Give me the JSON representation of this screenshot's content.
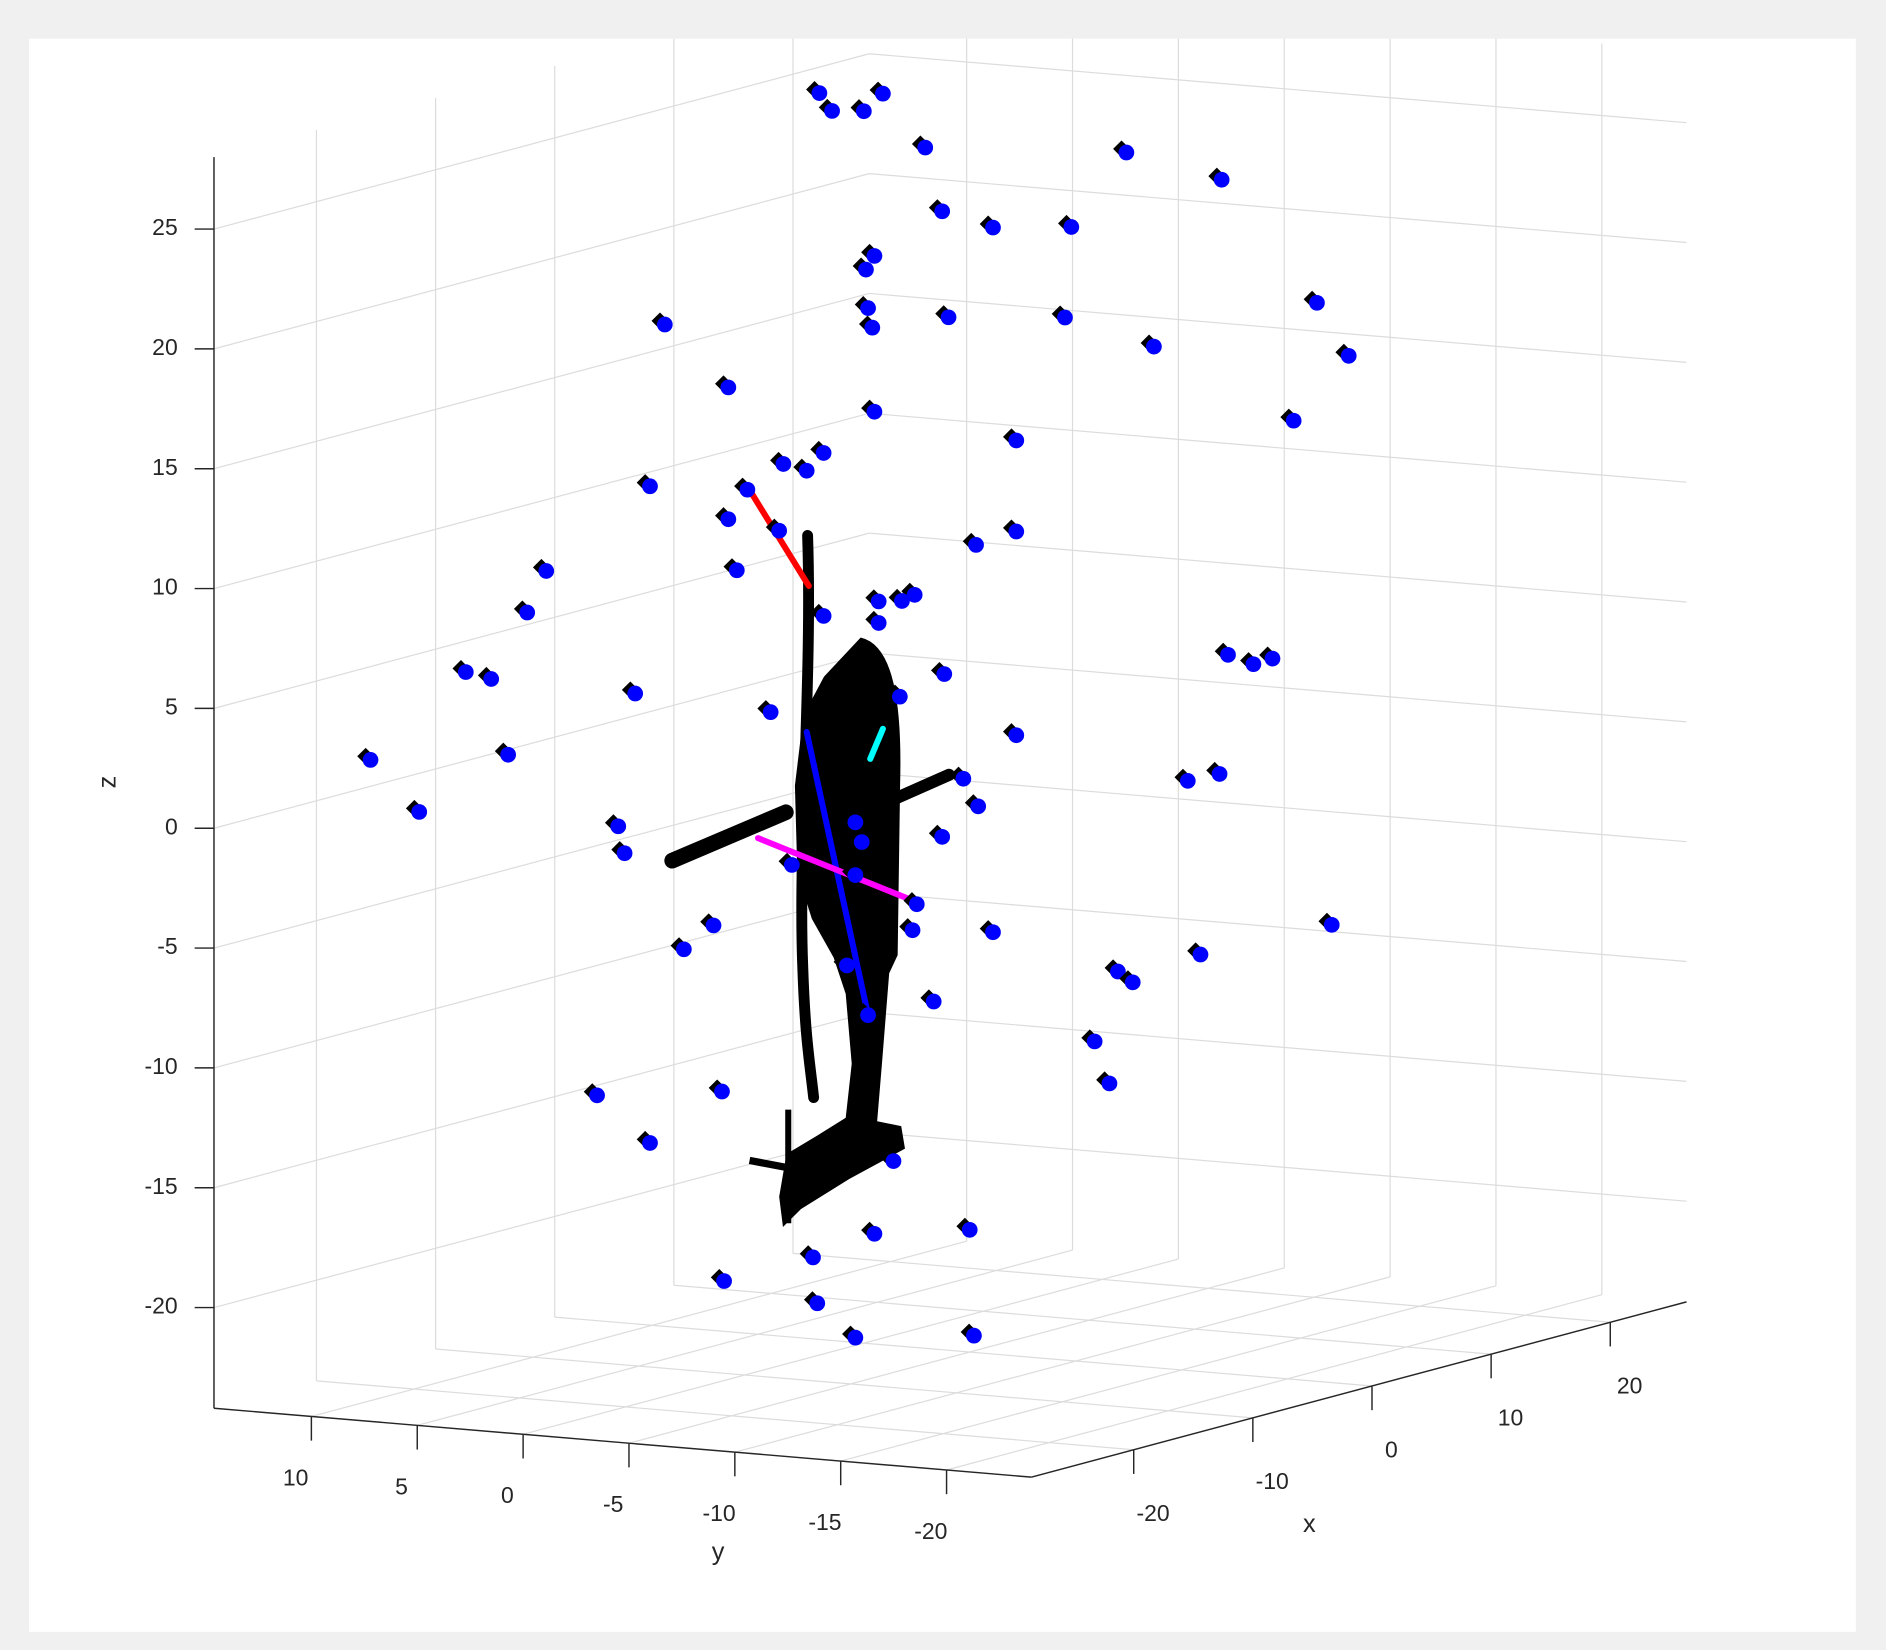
{
  "chart_data": {
    "type": "scatter3d",
    "xlabel": "x",
    "ylabel": "y",
    "zlabel": "z",
    "xlim": [
      -28.6,
      26.4
    ],
    "ylim": [
      -24,
      14.6
    ],
    "zlim": [
      -24.2,
      28
    ],
    "xticks": [
      -20,
      -10,
      0,
      10,
      20
    ],
    "yticks": [
      -20,
      -15,
      -10,
      -5,
      0,
      5,
      10
    ],
    "zticks": [
      -20,
      -15,
      -10,
      -5,
      0,
      5,
      10,
      15,
      20,
      25
    ],
    "grid": true,
    "series": [
      {
        "color": "#0000ff",
        "marker_color": "#000000",
        "x": [
          0,
          0,
          0,
          0,
          0,
          0,
          0,
          0,
          0,
          0,
          0,
          0,
          0,
          0,
          0,
          0,
          0,
          0,
          0,
          0,
          0,
          0,
          0,
          0,
          0,
          0,
          0,
          0,
          0,
          0,
          0,
          0,
          0,
          0,
          0,
          0,
          0,
          0,
          0,
          0,
          0,
          0,
          0,
          0,
          0,
          0,
          0,
          0,
          0,
          0,
          0,
          0,
          0,
          0,
          0,
          0,
          0,
          0,
          0,
          0,
          0,
          0,
          0,
          0,
          0,
          0,
          0,
          0,
          0,
          0,
          0,
          0,
          0,
          0,
          0,
          0,
          0,
          0,
          0,
          0,
          0,
          0,
          0,
          0,
          0,
          0,
          0,
          0,
          0,
          0
        ],
        "y": [
          1.5,
          0.0,
          -0.9,
          2.1,
          -2.9,
          -12.4,
          -16.9,
          -3.7,
          -6.1,
          -9.8,
          -0.5,
          -0.1,
          9.4,
          -0.2,
          -0.4,
          -4.0,
          -9.5,
          -13.7,
          -21.4,
          -22.9,
          6.4,
          -0.5,
          -20.3,
          -7.2,
          10.1,
          5.5,
          3.8,
          1.9,
          2.7,
          6.4,
          4.0,
          -7.2,
          -5.3,
          6.0,
          15.0,
          15.9,
          -0.7,
          -2.4,
          -1.8,
          1.9,
          -0.7,
          18.8,
          17.6,
          10.8,
          -3.8,
          -17.2,
          -19.3,
          -18.4,
          4.4,
          -1.7,
          -7.2,
          23.3,
          16.8,
          21.0,
          -4.7,
          -15.3,
          -16.8,
          -5.4,
          11.6,
          11.3,
          -3.7,
          0.1,
          0.4,
          3.4,
          -2.5,
          -2.3,
          -6.1,
          7.1,
          8.5,
          -22.1,
          -15.9,
          -12.0,
          -12.7,
          -3.3,
          -0.2,
          0.8,
          -10.9,
          12.6,
          6.7,
          -11.6,
          10.1,
          -1.4,
          -0.5,
          -5.0,
          6.6,
          2.4,
          2.2,
          0.4,
          -5.2,
          0.4
        ],
        "z": [
          27.1,
          27.2,
          28.0,
          27.8,
          25.9,
          26.4,
          25.6,
          23.3,
          22.8,
          23.1,
          21.2,
          20.6,
          17.6,
          19.0,
          18.2,
          18.9,
          19.3,
          18.4,
          20.8,
          18.7,
          15.2,
          14.7,
          15.8,
          14.0,
          10.8,
          11.0,
          12.2,
          12.8,
          12.0,
          9.7,
          9.4,
          10.2,
          9.5,
          7.6,
          6.9,
          5.1,
          6.8,
          7.2,
          6.9,
          6.0,
          5.9,
          2.4,
          2.2,
          2.1,
          4.0,
          5.8,
          5.8,
          5.5,
          1.8,
          2.9,
          1.7,
          -1.6,
          -0.9,
          -3.6,
          -0.3,
          0.4,
          0.8,
          -1.4,
          -3.5,
          -4.6,
          -2.8,
          -3.3,
          -2.5,
          -4.5,
          -5.7,
          -6.8,
          -6.6,
          -7.3,
          -8.4,
          -5.1,
          -6.8,
          -7.8,
          -8.2,
          -9.7,
          -10.5,
          -8.5,
          -10.8,
          -14.8,
          -14.2,
          -12.5,
          -16.6,
          -16.5,
          -19.6,
          -19.1,
          -22.1,
          -20.8,
          -22.7,
          -24.0,
          -23.5,
          -4.7
        ]
      }
    ],
    "segments": [
      {
        "color": "#ff0000",
        "x": [
          0,
          0
        ],
        "y": [
          5.4,
          2.6
        ],
        "z": [
          11.0,
          7.2
        ]
      },
      {
        "color": "#0000ff",
        "x": [
          0,
          0
        ],
        "y": [
          2.7,
          -0.2
        ],
        "z": [
          1.1,
          -10.5
        ]
      },
      {
        "color": "#ff00ff",
        "x": [
          0,
          0
        ],
        "y": [
          5.0,
          -2.1
        ],
        "z": [
          -3.5,
          -5.5
        ]
      },
      {
        "color": "#00ffff",
        "x": [
          0,
          0
        ],
        "y": [
          -0.9,
          -0.3
        ],
        "z": [
          1.5,
          0.2
        ]
      }
    ]
  }
}
